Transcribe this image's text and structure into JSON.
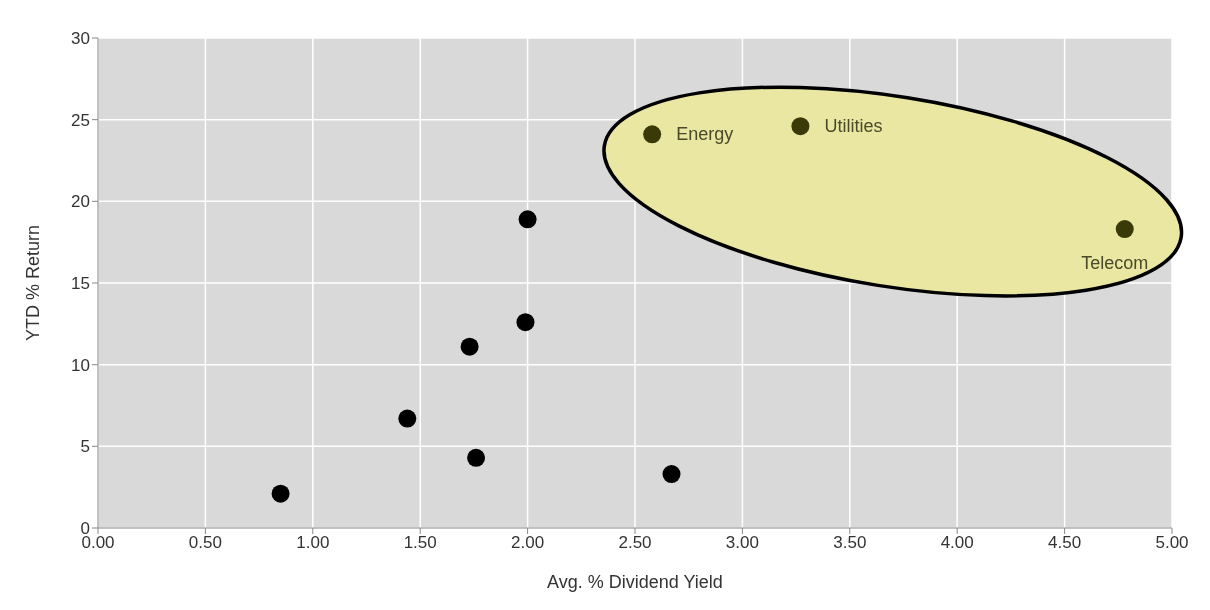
{
  "chart_data": {
    "type": "scatter",
    "xlabel": "Avg. % Dividend Yield",
    "ylabel": "YTD % Return",
    "x": [
      0.85,
      1.44,
      1.76,
      1.73,
      1.99,
      2.0,
      2.67,
      2.58,
      3.27,
      4.78
    ],
    "values": [
      2.1,
      6.7,
      4.3,
      11.1,
      12.6,
      18.9,
      3.3,
      24.1,
      24.6,
      18.3
    ],
    "colors": [
      "#000000",
      "#000000",
      "#000000",
      "#000000",
      "#000000",
      "#000000",
      "#000000",
      "#3a3a08",
      "#3a3a08",
      "#3a3a08"
    ],
    "xlim": [
      0,
      5
    ],
    "xticks": [
      {
        "value": 0,
        "label": "0.00"
      },
      {
        "value": 0.5,
        "label": "0.50"
      },
      {
        "value": 1,
        "label": "1.00"
      },
      {
        "value": 1.5,
        "label": "1.50"
      },
      {
        "value": 2,
        "label": "2.00"
      },
      {
        "value": 2.5,
        "label": "2.50"
      },
      {
        "value": 3,
        "label": "3.00"
      },
      {
        "value": 3.5,
        "label": "3.50"
      },
      {
        "value": 4,
        "label": "4.00"
      },
      {
        "value": 4.5,
        "label": "4.50"
      },
      {
        "value": 5,
        "label": "5.00"
      }
    ],
    "ylim": [
      0,
      30
    ],
    "yticks": [
      0,
      5,
      10,
      15,
      20,
      25,
      30
    ],
    "grid": true,
    "marker": "circle",
    "annotations": [
      {
        "text": "Energy",
        "x": 2.58,
        "y": 24.1
      },
      {
        "text": "Utilities",
        "x": 3.27,
        "y": 24.6
      },
      {
        "text": "Telecom",
        "x": 4.78,
        "y": 18.3
      }
    ]
  }
}
